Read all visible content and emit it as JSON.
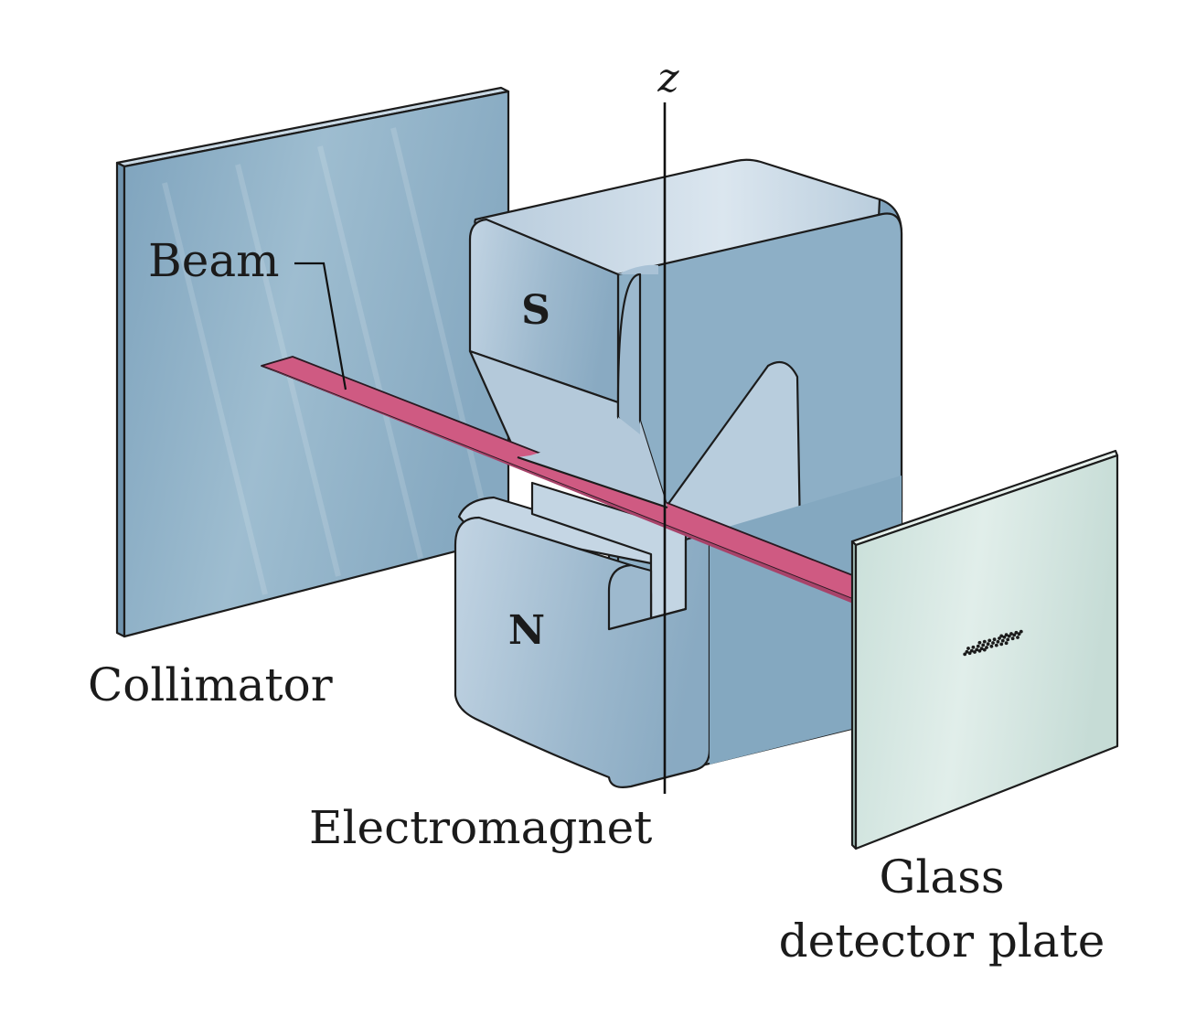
{
  "labels": {
    "z_axis": "z",
    "beam": "Beam",
    "collimator": "Collimator",
    "electromagnet": "Electromagnet",
    "glass_line1": "Glass",
    "glass_line2": "detector plate",
    "south_pole": "S",
    "north_pole": "N"
  },
  "colors": {
    "collimator_blue": "#8fb2c8",
    "magnet_blue": "#a9c2d6",
    "magnet_dark": "#7da2bd",
    "beam_pink": "#cf5a82",
    "glass_green": "#d3e6e1",
    "outline": "#1c1c1c"
  }
}
